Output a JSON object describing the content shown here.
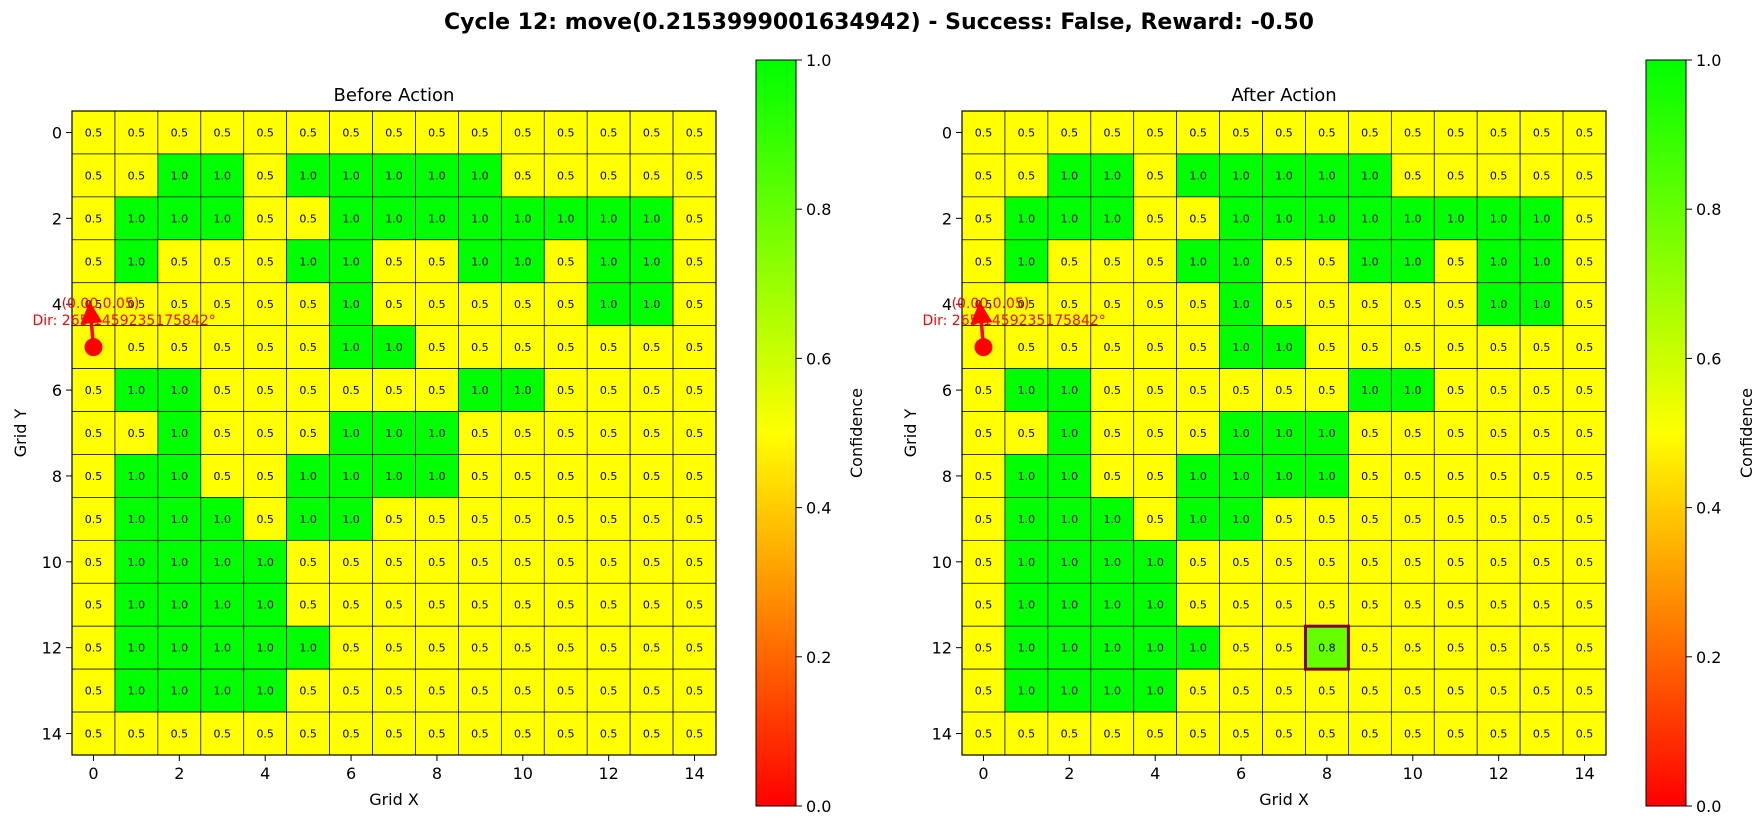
{
  "figure": {
    "title": "Cycle 12: move(0.2153999001634942) - Success: False, Reward: -0.50"
  },
  "colors": {
    "low": "#ff0000",
    "mid": "#ffff00",
    "high": "#00ff00",
    "robot": "#ff0000",
    "highlight": "#800040"
  },
  "chart_data": [
    {
      "type": "heatmap",
      "title": "Before Action",
      "xlabel": "Grid X",
      "ylabel": "Grid Y",
      "xticks": [
        0,
        2,
        4,
        6,
        8,
        10,
        12,
        14
      ],
      "yticks": [
        0,
        2,
        4,
        6,
        8,
        10,
        12,
        14
      ],
      "xlim": [
        -0.5,
        14.5
      ],
      "ylim": [
        14.5,
        -0.5
      ],
      "colorbar": {
        "label": "Confidence",
        "range": [
          0.0,
          1.0
        ],
        "ticks": [
          "0.0",
          "0.2",
          "0.4",
          "0.6",
          "0.8",
          "1.0"
        ]
      },
      "grid": [
        [
          0.5,
          0.5,
          0.5,
          0.5,
          0.5,
          0.5,
          0.5,
          0.5,
          0.5,
          0.5,
          0.5,
          0.5,
          0.5,
          0.5,
          0.5
        ],
        [
          0.5,
          0.5,
          1.0,
          1.0,
          0.5,
          1.0,
          1.0,
          1.0,
          1.0,
          1.0,
          0.5,
          0.5,
          0.5,
          0.5,
          0.5
        ],
        [
          0.5,
          1.0,
          1.0,
          1.0,
          0.5,
          0.5,
          1.0,
          1.0,
          1.0,
          1.0,
          1.0,
          1.0,
          1.0,
          1.0,
          0.5
        ],
        [
          0.5,
          1.0,
          0.5,
          0.5,
          0.5,
          1.0,
          1.0,
          0.5,
          0.5,
          1.0,
          1.0,
          0.5,
          1.0,
          1.0,
          0.5
        ],
        [
          0.5,
          0.5,
          0.5,
          0.5,
          0.5,
          0.5,
          1.0,
          0.5,
          0.5,
          0.5,
          0.5,
          0.5,
          1.0,
          1.0,
          0.5
        ],
        [
          0.5,
          0.5,
          0.5,
          0.5,
          0.5,
          0.5,
          1.0,
          1.0,
          0.5,
          0.5,
          0.5,
          0.5,
          0.5,
          0.5,
          0.5
        ],
        [
          0.5,
          1.0,
          1.0,
          0.5,
          0.5,
          0.5,
          0.5,
          0.5,
          0.5,
          1.0,
          1.0,
          0.5,
          0.5,
          0.5,
          0.5
        ],
        [
          0.5,
          0.5,
          1.0,
          0.5,
          0.5,
          0.5,
          1.0,
          1.0,
          1.0,
          0.5,
          0.5,
          0.5,
          0.5,
          0.5,
          0.5
        ],
        [
          0.5,
          1.0,
          1.0,
          0.5,
          0.5,
          1.0,
          1.0,
          1.0,
          1.0,
          0.5,
          0.5,
          0.5,
          0.5,
          0.5,
          0.5
        ],
        [
          0.5,
          1.0,
          1.0,
          1.0,
          0.5,
          1.0,
          1.0,
          0.5,
          0.5,
          0.5,
          0.5,
          0.5,
          0.5,
          0.5,
          0.5
        ],
        [
          0.5,
          1.0,
          1.0,
          1.0,
          1.0,
          0.5,
          0.5,
          0.5,
          0.5,
          0.5,
          0.5,
          0.5,
          0.5,
          0.5,
          0.5
        ],
        [
          0.5,
          1.0,
          1.0,
          1.0,
          1.0,
          0.5,
          0.5,
          0.5,
          0.5,
          0.5,
          0.5,
          0.5,
          0.5,
          0.5,
          0.5
        ],
        [
          0.5,
          1.0,
          1.0,
          1.0,
          1.0,
          1.0,
          0.5,
          0.5,
          0.5,
          0.5,
          0.5,
          0.5,
          0.5,
          0.5,
          0.5
        ],
        [
          0.5,
          1.0,
          1.0,
          1.0,
          1.0,
          0.5,
          0.5,
          0.5,
          0.5,
          0.5,
          0.5,
          0.5,
          0.5,
          0.5,
          0.5
        ],
        [
          0.5,
          0.5,
          0.5,
          0.5,
          0.5,
          0.5,
          0.5,
          0.5,
          0.5,
          0.5,
          0.5,
          0.5,
          0.5,
          0.5,
          0.5
        ]
      ],
      "robot": {
        "x": 0,
        "y": 5,
        "direction_deg": 265.1459235175842,
        "position_label": "(0.00,0.05)",
        "direction_label": "Dir: 265.1459235175842°"
      },
      "highlight_cell": null
    },
    {
      "type": "heatmap",
      "title": "After Action",
      "xlabel": "Grid X",
      "ylabel": "Grid Y",
      "xticks": [
        0,
        2,
        4,
        6,
        8,
        10,
        12,
        14
      ],
      "yticks": [
        0,
        2,
        4,
        6,
        8,
        10,
        12,
        14
      ],
      "xlim": [
        -0.5,
        14.5
      ],
      "ylim": [
        14.5,
        -0.5
      ],
      "colorbar": {
        "label": "Confidence",
        "range": [
          0.0,
          1.0
        ],
        "ticks": [
          "0.0",
          "0.2",
          "0.4",
          "0.6",
          "0.8",
          "1.0"
        ]
      },
      "grid": [
        [
          0.5,
          0.5,
          0.5,
          0.5,
          0.5,
          0.5,
          0.5,
          0.5,
          0.5,
          0.5,
          0.5,
          0.5,
          0.5,
          0.5,
          0.5
        ],
        [
          0.5,
          0.5,
          1.0,
          1.0,
          0.5,
          1.0,
          1.0,
          1.0,
          1.0,
          1.0,
          0.5,
          0.5,
          0.5,
          0.5,
          0.5
        ],
        [
          0.5,
          1.0,
          1.0,
          1.0,
          0.5,
          0.5,
          1.0,
          1.0,
          1.0,
          1.0,
          1.0,
          1.0,
          1.0,
          1.0,
          0.5
        ],
        [
          0.5,
          1.0,
          0.5,
          0.5,
          0.5,
          1.0,
          1.0,
          0.5,
          0.5,
          1.0,
          1.0,
          0.5,
          1.0,
          1.0,
          0.5
        ],
        [
          0.5,
          0.5,
          0.5,
          0.5,
          0.5,
          0.5,
          1.0,
          0.5,
          0.5,
          0.5,
          0.5,
          0.5,
          1.0,
          1.0,
          0.5
        ],
        [
          0.5,
          0.5,
          0.5,
          0.5,
          0.5,
          0.5,
          1.0,
          1.0,
          0.5,
          0.5,
          0.5,
          0.5,
          0.5,
          0.5,
          0.5
        ],
        [
          0.5,
          1.0,
          1.0,
          0.5,
          0.5,
          0.5,
          0.5,
          0.5,
          0.5,
          1.0,
          1.0,
          0.5,
          0.5,
          0.5,
          0.5
        ],
        [
          0.5,
          0.5,
          1.0,
          0.5,
          0.5,
          0.5,
          1.0,
          1.0,
          1.0,
          0.5,
          0.5,
          0.5,
          0.5,
          0.5,
          0.5
        ],
        [
          0.5,
          1.0,
          1.0,
          0.5,
          0.5,
          1.0,
          1.0,
          1.0,
          1.0,
          0.5,
          0.5,
          0.5,
          0.5,
          0.5,
          0.5
        ],
        [
          0.5,
          1.0,
          1.0,
          1.0,
          0.5,
          1.0,
          1.0,
          0.5,
          0.5,
          0.5,
          0.5,
          0.5,
          0.5,
          0.5,
          0.5
        ],
        [
          0.5,
          1.0,
          1.0,
          1.0,
          1.0,
          0.5,
          0.5,
          0.5,
          0.5,
          0.5,
          0.5,
          0.5,
          0.5,
          0.5,
          0.5
        ],
        [
          0.5,
          1.0,
          1.0,
          1.0,
          1.0,
          0.5,
          0.5,
          0.5,
          0.5,
          0.5,
          0.5,
          0.5,
          0.5,
          0.5,
          0.5
        ],
        [
          0.5,
          1.0,
          1.0,
          1.0,
          1.0,
          1.0,
          0.5,
          0.5,
          0.8,
          0.5,
          0.5,
          0.5,
          0.5,
          0.5,
          0.5
        ],
        [
          0.5,
          1.0,
          1.0,
          1.0,
          1.0,
          0.5,
          0.5,
          0.5,
          0.5,
          0.5,
          0.5,
          0.5,
          0.5,
          0.5,
          0.5
        ],
        [
          0.5,
          0.5,
          0.5,
          0.5,
          0.5,
          0.5,
          0.5,
          0.5,
          0.5,
          0.5,
          0.5,
          0.5,
          0.5,
          0.5,
          0.5
        ]
      ],
      "robot": {
        "x": 0,
        "y": 5,
        "direction_deg": 265.1459235175842,
        "position_label": "(0.00,0.05)",
        "direction_label": "Dir: 265.1459235175842°"
      },
      "highlight_cell": {
        "x": 8,
        "y": 12
      }
    }
  ]
}
